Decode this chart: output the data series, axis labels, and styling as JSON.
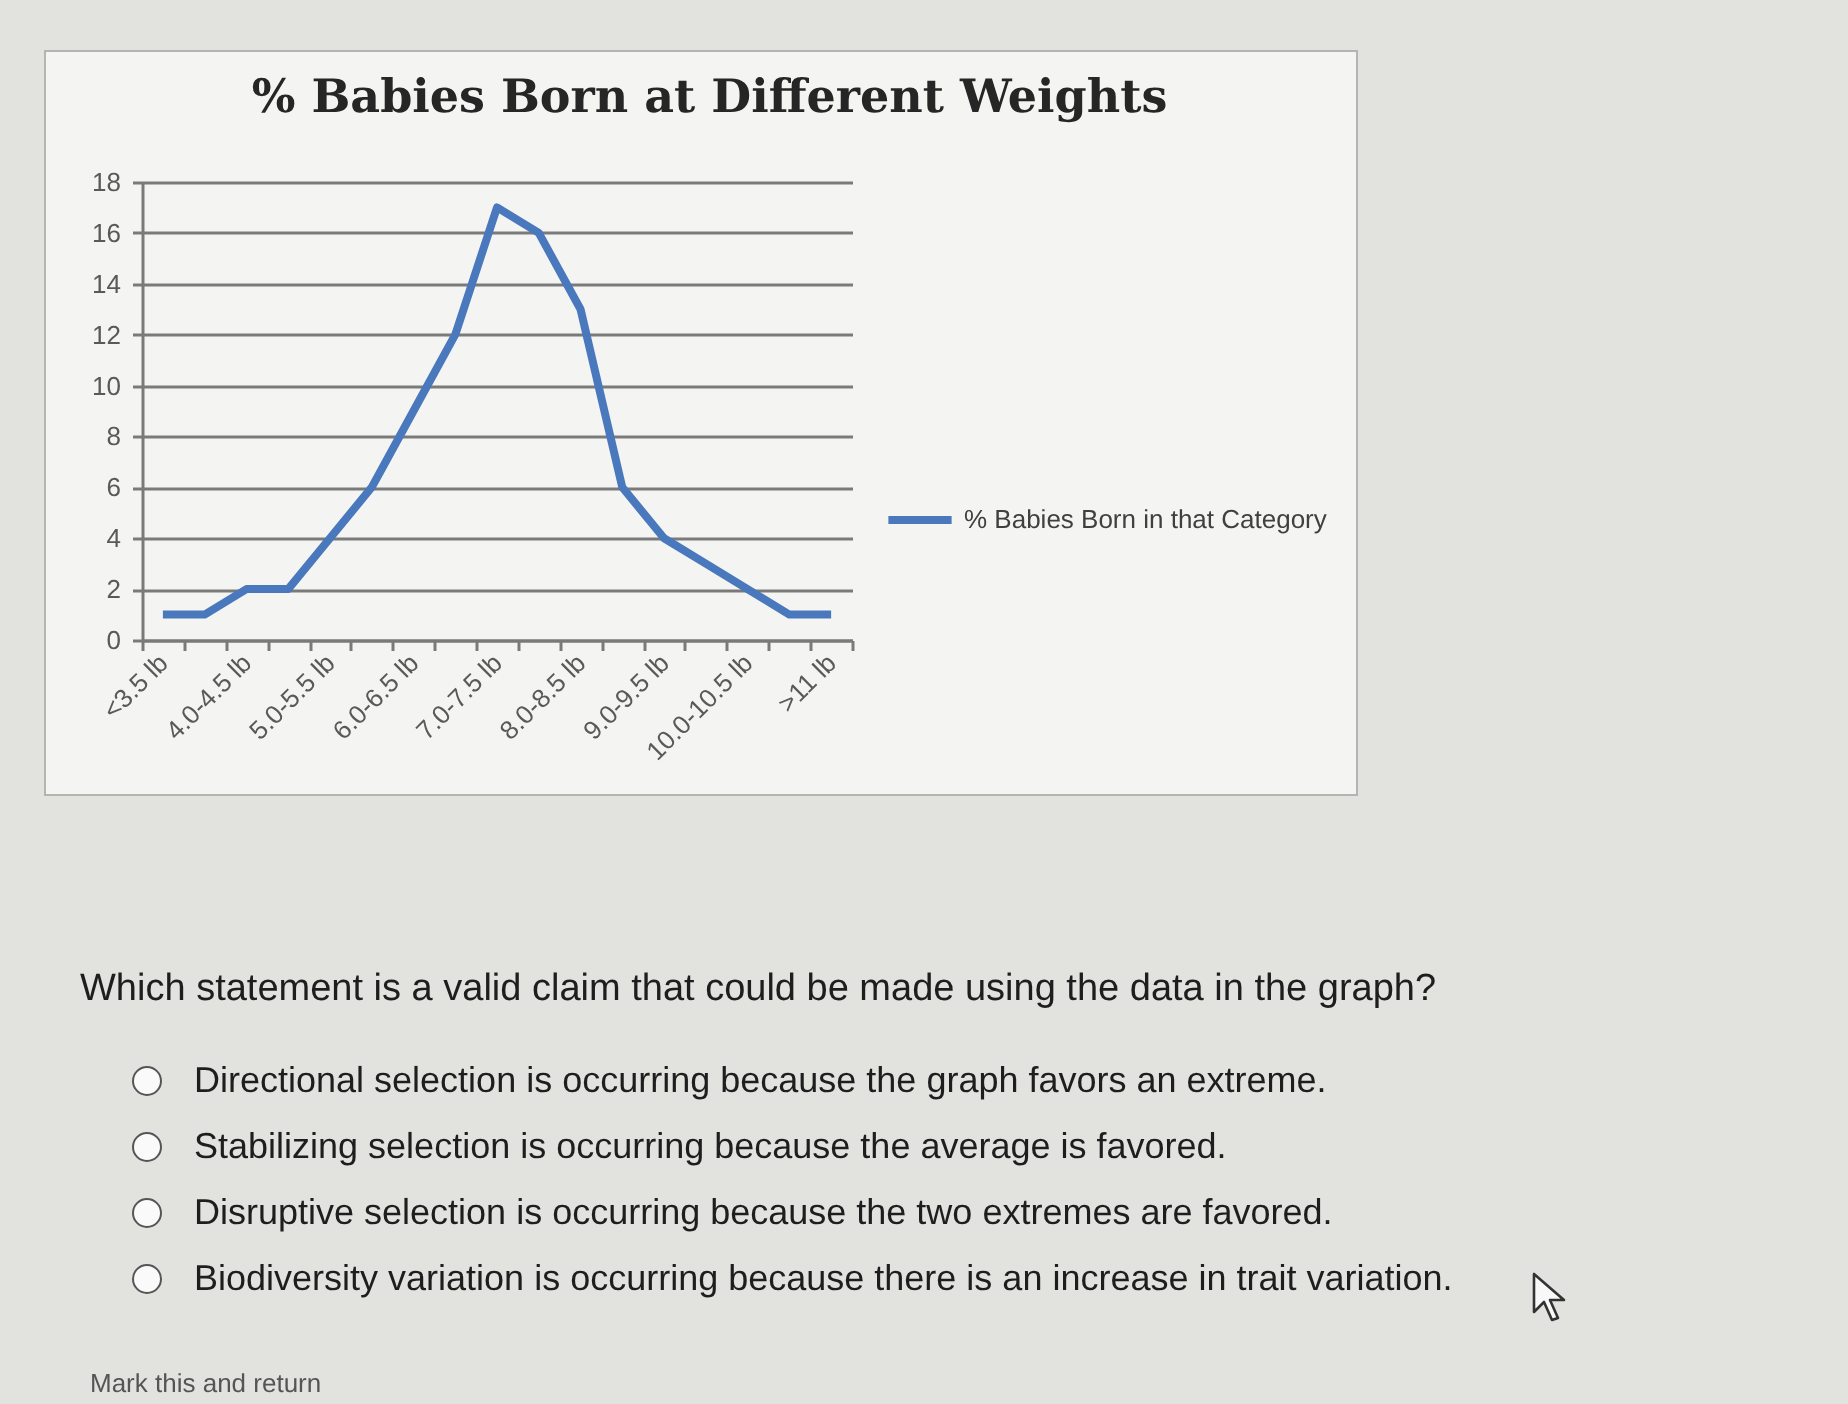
{
  "chart_data": {
    "type": "line",
    "title": "% Babies Born at Different Weights",
    "categories": [
      "<3.5 lb",
      null,
      "4.0-4.5 lb",
      null,
      "5.0-5.5 lb",
      null,
      "6.0-6.5 lb",
      null,
      "7.0-7.5 lb",
      null,
      "8.0-8.5 lb",
      null,
      "9.0-9.5 lb",
      null,
      "10.0-10.5 lb",
      null,
      ">11 lb"
    ],
    "series": [
      {
        "name": "% Babies Born in that Category",
        "color": "#4a78bd",
        "values": [
          1,
          1,
          2,
          2,
          4,
          6,
          9,
          12,
          17,
          16,
          13,
          6,
          4,
          3,
          2,
          1,
          1
        ]
      }
    ],
    "ylim": [
      0,
      18
    ],
    "yticks": [
      0,
      2,
      4,
      6,
      8,
      10,
      12,
      14,
      16,
      18
    ],
    "grid": "y",
    "legend": "right",
    "line_style": "solid",
    "annotations": [
      "Which statement is a valid claim that could be made using the data in the graph?",
      "Directional selection is occurring because the graph favors an extreme.",
      "Stabilizing selection is occurring because the average is favored.",
      "Disruptive selection is occurring because the two extremes are favored.",
      "Biodiversity variation is occurring because there is an increase in trait variation.",
      "Mark this and return"
    ]
  }
}
